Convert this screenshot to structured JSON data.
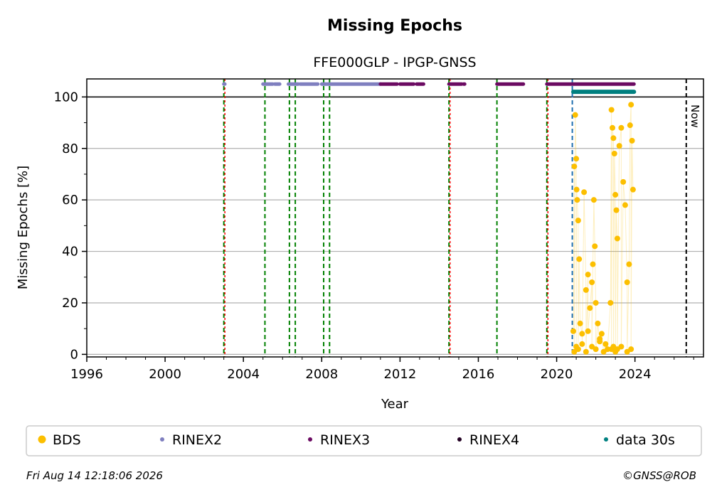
{
  "chart_data": {
    "type": "scatter",
    "title": "Missing Epochs",
    "subtitle": "FFE000GLP - IPGP-GNSS",
    "xlabel": "Year",
    "ylabel": "Missing Epochs [%]",
    "xlim": [
      1996.0,
      2027.5
    ],
    "ylim": [
      -1,
      107
    ],
    "x_ticks": [
      1996,
      2000,
      2004,
      2008,
      2012,
      2016,
      2020,
      2024
    ],
    "y_ticks": [
      0,
      20,
      40,
      60,
      80,
      100
    ],
    "grid": "horizontal",
    "reference_line_y": 100,
    "now_label": "Now",
    "now_x": 2026.62,
    "colors": {
      "BDS": "#fcbf00",
      "RINEX2": "#7f7fbf",
      "RINEX3": "#6b0a62",
      "RINEX4": "#220022",
      "data30s": "#008080",
      "event_green": "#008000",
      "event_red": "#ff0000",
      "event_blue": "#1f6fb0"
    },
    "legend": [
      "BDS",
      "RINEX2",
      "RINEX3",
      "RINEX4",
      "data 30s"
    ],
    "legend_placement": "bottom",
    "vertical_events": [
      {
        "x": 2003.0,
        "style": "green-red"
      },
      {
        "x": 2005.1,
        "style": "green"
      },
      {
        "x": 2006.35,
        "style": "green"
      },
      {
        "x": 2006.65,
        "style": "green"
      },
      {
        "x": 2008.1,
        "style": "green"
      },
      {
        "x": 2008.4,
        "style": "green"
      },
      {
        "x": 2014.5,
        "style": "green-red"
      },
      {
        "x": 2016.95,
        "style": "green"
      },
      {
        "x": 2019.5,
        "style": "green-red"
      },
      {
        "x": 2020.8,
        "style": "blue"
      }
    ],
    "series": [
      {
        "name": "RINEX2",
        "y": 105,
        "intervals": [
          [
            2003.0,
            2003.05
          ],
          [
            2005.0,
            2005.5
          ],
          [
            2005.6,
            2005.85
          ],
          [
            2006.3,
            2006.8
          ],
          [
            2006.9,
            2007.8
          ],
          [
            2008.0,
            2011.0
          ]
        ]
      },
      {
        "name": "RINEX3",
        "y": 105,
        "intervals": [
          [
            2011.0,
            2011.85
          ],
          [
            2012.0,
            2012.7
          ],
          [
            2012.85,
            2013.2
          ],
          [
            2014.5,
            2015.15
          ],
          [
            2015.25,
            2015.3
          ],
          [
            2016.95,
            2018.3
          ],
          [
            2019.5,
            2023.95
          ]
        ]
      },
      {
        "name": "data 30s",
        "y": 102,
        "intervals": [
          [
            2020.85,
            2023.95
          ]
        ]
      },
      {
        "name": "BDS",
        "x": [
          2020.85,
          2020.9,
          2020.95,
          2021.0,
          2021.02,
          2021.05,
          2021.1,
          2021.15,
          2021.2,
          2021.3,
          2021.4,
          2021.5,
          2021.6,
          2021.7,
          2021.8,
          2021.85,
          2021.9,
          2021.95,
          2022.0,
          2022.1,
          2022.2,
          2022.3,
          2022.5,
          2022.6,
          2022.75,
          2022.8,
          2022.85,
          2022.9,
          2022.95,
          2023.0,
          2023.05,
          2023.1,
          2023.2,
          2023.3,
          2023.4,
          2023.5,
          2023.6,
          2023.7,
          2023.75,
          2023.8,
          2023.85,
          2023.9,
          2020.9,
          2021.0,
          2021.1,
          2021.3,
          2021.5,
          2021.8,
          2022.0,
          2022.4,
          2022.8,
          2022.9,
          2023.0,
          2023.1,
          2023.3,
          2023.6,
          2023.8,
          2021.6,
          2022.2
        ],
        "y": [
          9,
          73,
          93,
          76,
          64,
          60,
          52,
          37,
          12,
          8,
          63,
          25,
          31,
          18,
          28,
          35,
          60,
          42,
          20,
          12,
          5,
          8,
          4,
          2,
          20,
          95,
          88,
          84,
          78,
          62,
          56,
          45,
          81,
          88,
          67,
          58,
          28,
          35,
          89,
          97,
          83,
          64,
          1,
          3,
          2,
          4,
          1,
          3,
          2,
          1,
          2,
          3,
          1,
          2,
          3,
          1,
          2,
          9,
          6
        ]
      }
    ]
  },
  "footer": {
    "timestamp": "Fri Aug 14 12:18:06 2026",
    "copyright": "©GNSS@ROB"
  }
}
